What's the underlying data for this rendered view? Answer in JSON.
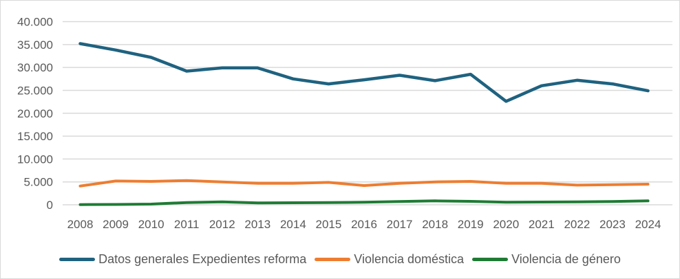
{
  "chart_data": {
    "type": "line",
    "title": "",
    "xlabel": "",
    "ylabel": "",
    "categories": [
      "2008",
      "2009",
      "2010",
      "2011",
      "2012",
      "2013",
      "2014",
      "2015",
      "2016",
      "2017",
      "2018",
      "2019",
      "2020",
      "2021",
      "2022",
      "2023",
      "2024"
    ],
    "series": [
      {
        "name": "Datos generales Expedientes reforma",
        "color": "#1f6280",
        "stroke_width": 4.5,
        "values": [
          35200,
          33800,
          32200,
          29200,
          29900,
          29900,
          27500,
          26400,
          27300,
          28300,
          27100,
          28500,
          22600,
          26000,
          27200,
          26400,
          24900
        ]
      },
      {
        "name": "Violencia doméstica",
        "color": "#ed7d31",
        "stroke_width": 4,
        "values": [
          4100,
          5200,
          5100,
          5300,
          5000,
          4700,
          4700,
          4900,
          4200,
          4700,
          5000,
          5100,
          4700,
          4700,
          4300,
          4400,
          4500
        ]
      },
      {
        "name": "Violencia de género",
        "color": "#1e7b34",
        "stroke_width": 4,
        "values": [
          50,
          80,
          150,
          500,
          650,
          400,
          450,
          500,
          550,
          700,
          850,
          750,
          550,
          600,
          650,
          700,
          850
        ]
      }
    ],
    "ylim": [
      0,
      40000
    ],
    "y_tick_step": 5000,
    "y_tick_labels": [
      "0",
      "5.000",
      "10.000",
      "15.000",
      "20.000",
      "25.000",
      "30.000",
      "35.000",
      "40.000"
    ],
    "grid": true,
    "legend_position": "bottom",
    "colors": {
      "gridline": "#d9d9d9",
      "axis_text": "#595959",
      "frame_border": "#d9d9d9",
      "background": "#ffffff"
    }
  }
}
